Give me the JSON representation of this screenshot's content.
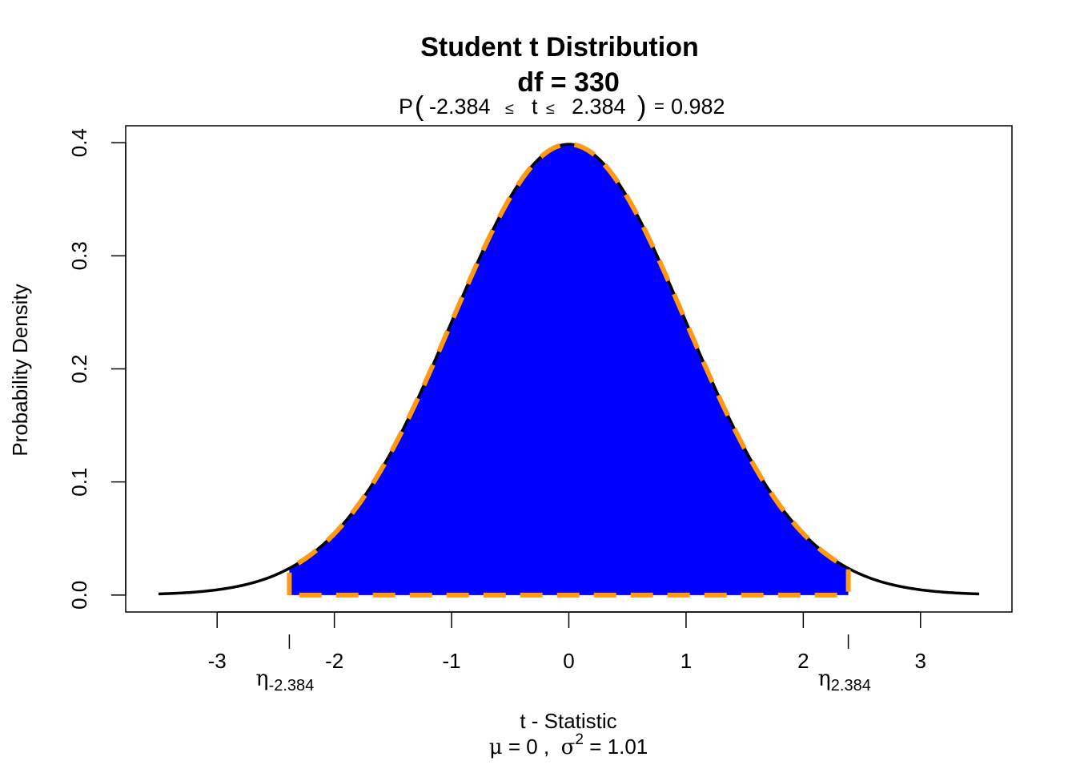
{
  "chart_data": {
    "type": "area",
    "title": "Student t Distribution",
    "subtitle_df": "df  =  330",
    "probability": {
      "prefix": "P",
      "lower": "-2.384",
      "le1": "≤",
      "variable": "t",
      "le2": "≤",
      "upper": "2.384",
      "equals": "=",
      "value": "0.982"
    },
    "df": 330,
    "lower_bound": -2.384,
    "upper_bound": 2.384,
    "x_range": [
      -3.5,
      3.5
    ],
    "xlim": [
      -3.78,
      3.78
    ],
    "ylim": [
      -0.015,
      0.415
    ],
    "x_ticks": [
      -3,
      -2,
      -1,
      0,
      1,
      2,
      3
    ],
    "x_tick_labels": [
      "-3",
      "-2",
      "-1",
      "0",
      "1",
      "2",
      "3"
    ],
    "y_ticks": [
      0.0,
      0.1,
      0.2,
      0.3,
      0.4
    ],
    "y_tick_labels": [
      "0.0",
      "0.1",
      "0.2",
      "0.3",
      "0.4"
    ],
    "xlabel": "t - Statistic",
    "ylabel": "Probability Density",
    "eta_lower": {
      "symbol": "η",
      "sub": "-2.384"
    },
    "eta_upper": {
      "symbol": "η",
      "sub": "2.384"
    },
    "moments": {
      "mu_symbol": "μ",
      "mu_text": " = 0 ,  ",
      "sigma_symbol": "σ",
      "sigma_exp": "2",
      "sigma_text": " = 1.01"
    },
    "colors": {
      "fill": "#0000FF",
      "outline": "#FF9912",
      "curve": "#000000"
    }
  }
}
